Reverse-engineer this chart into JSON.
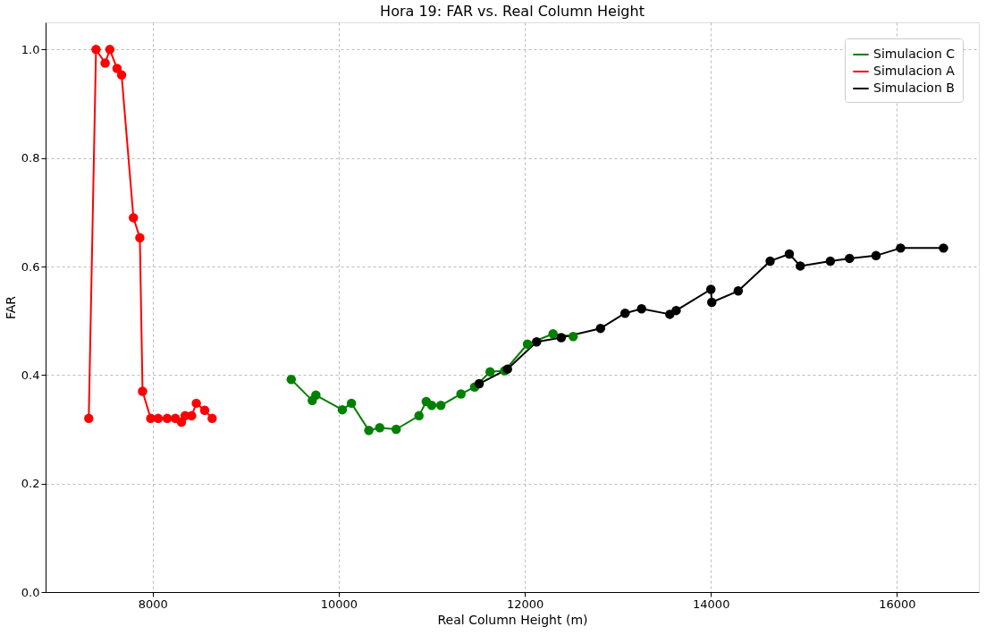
{
  "chart_data": {
    "type": "line",
    "title": "Hora 19: FAR vs. Real Column Height",
    "xlabel": "Real Column Height (m)",
    "ylabel": "FAR",
    "xlim": [
      6850,
      16880
    ],
    "ylim": [
      0,
      1.05
    ],
    "xticks": [
      8000,
      10000,
      12000,
      14000,
      16000
    ],
    "yticks": [
      {
        "value": 0,
        "label": "0.0"
      },
      0.2,
      0.4,
      0.6,
      0.8,
      {
        "value": 1,
        "label": "1.0"
      }
    ],
    "grid": true,
    "legend": "top right",
    "marker": "circle",
    "line_style": "solid",
    "series": [
      {
        "name": "Simulacion C",
        "color": "#008000",
        "x": [
          9490,
          9716,
          9755,
          10039,
          10137,
          10324,
          10441,
          10618,
          10863,
          10941,
          11000,
          11098,
          11314,
          11461,
          11627,
          11784,
          12029,
          12304,
          12520
        ],
        "values": [
          0.392,
          0.353,
          0.363,
          0.336,
          0.348,
          0.298,
          0.303,
          0.3,
          0.325,
          0.351,
          0.344,
          0.344,
          0.365,
          0.378,
          0.406,
          0.408,
          0.457,
          0.476,
          0.471
        ]
      },
      {
        "name": "Simulacion A",
        "color": "#ff0000",
        "x": [
          7314,
          7392,
          7490,
          7540,
          7618,
          7667,
          7794,
          7863,
          7892,
          7980,
          8060,
          8157,
          8245,
          8310,
          8350,
          8420,
          8470,
          8560,
          8640
        ],
        "values": [
          0.32,
          1.0,
          0.975,
          1.0,
          0.965,
          0.953,
          0.69,
          0.653,
          0.37,
          0.32,
          0.32,
          0.32,
          0.32,
          0.313,
          0.325,
          0.325,
          0.348,
          0.335,
          0.32
        ]
      },
      {
        "name": "Simulacion B",
        "color": "#000000",
        "x": [
          11510,
          11814,
          12127,
          12392,
          12814,
          13078,
          13255,
          13559,
          13627,
          14000,
          14010,
          14294,
          14637,
          14843,
          14961,
          15284,
          15490,
          15775,
          16039,
          16500
        ],
        "values": [
          0.384,
          0.411,
          0.461,
          0.469,
          0.486,
          0.514,
          0.522,
          0.512,
          0.519,
          0.558,
          0.534,
          0.555,
          0.61,
          0.623,
          0.601,
          0.61,
          0.615,
          0.62,
          0.634,
          0.634
        ]
      }
    ]
  }
}
